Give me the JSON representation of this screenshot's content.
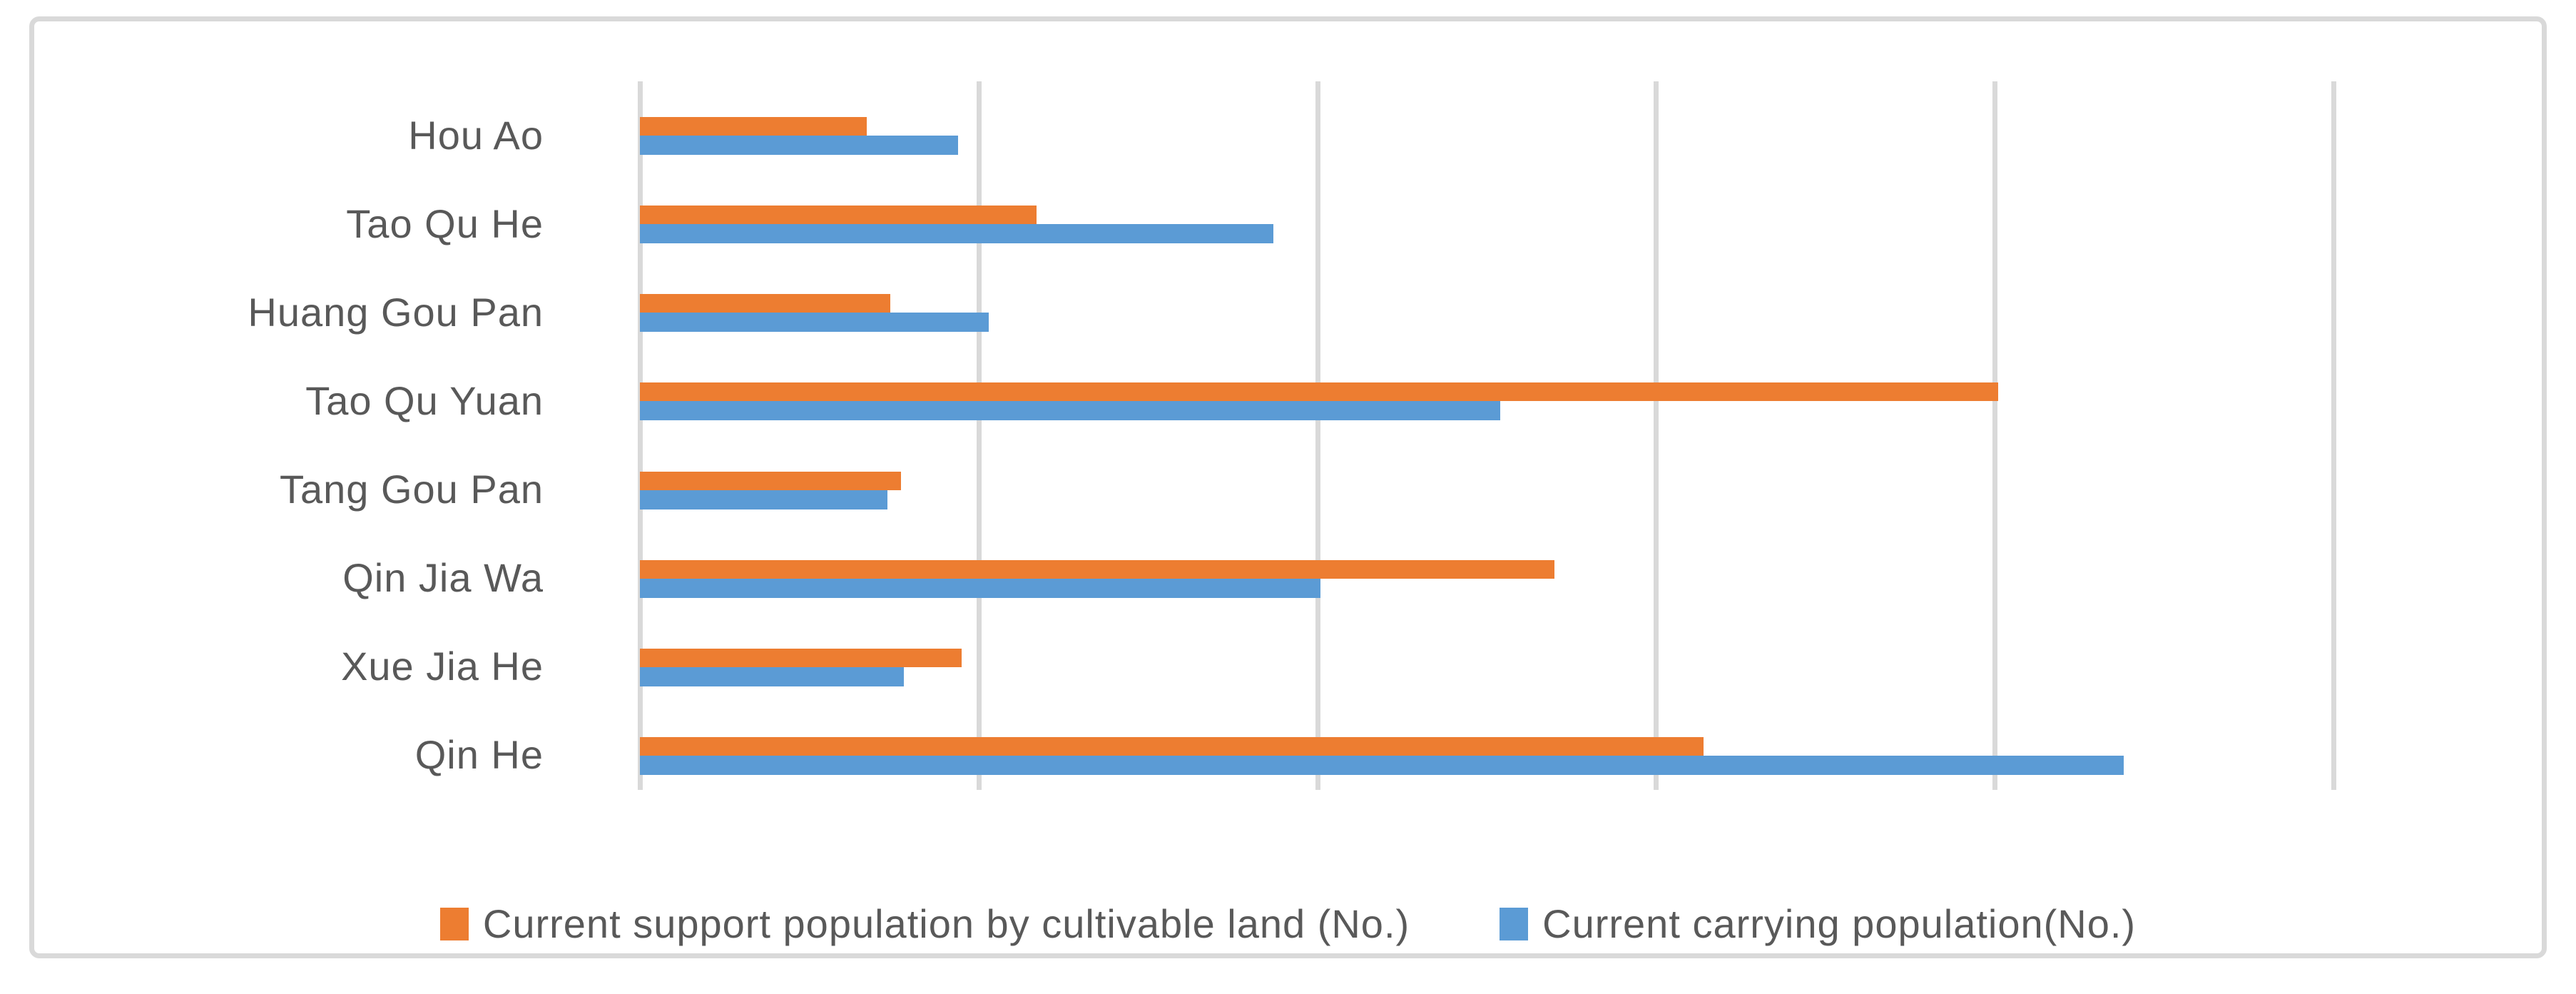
{
  "chart_data": {
    "type": "bar",
    "orientation": "horizontal",
    "title": "",
    "xlabel": "",
    "ylabel": "",
    "categories": [
      "Hou Ao",
      "Tao Qu He",
      "Huang Gou Pan",
      "Tao Qu Yuan",
      "Tang Gou Pan",
      "Qin Jia Wa",
      "Xue Jia He",
      "Qin He"
    ],
    "series": [
      {
        "name": "Current support population by cultivable land (No.)",
        "color": "#ED7D31",
        "values": [
          0.67,
          1.17,
          0.74,
          4.01,
          0.77,
          2.7,
          0.95,
          3.14
        ]
      },
      {
        "name": "Current carrying population(No.)",
        "color": "#5B9BD5",
        "values": [
          0.94,
          1.87,
          1.03,
          2.54,
          0.73,
          2.01,
          0.78,
          4.38
        ]
      }
    ],
    "xlim": [
      0,
      5
    ],
    "x_gridline_interval": 1,
    "x_tick_labels": [],
    "grid": "vertical",
    "legend_position": "bottom-center"
  },
  "colors": {
    "background": "#FFFFFF",
    "border": "#D9D9D9",
    "gridline": "#D9D9D9",
    "axis": "#D9D9D9",
    "label_text": "#595959"
  }
}
